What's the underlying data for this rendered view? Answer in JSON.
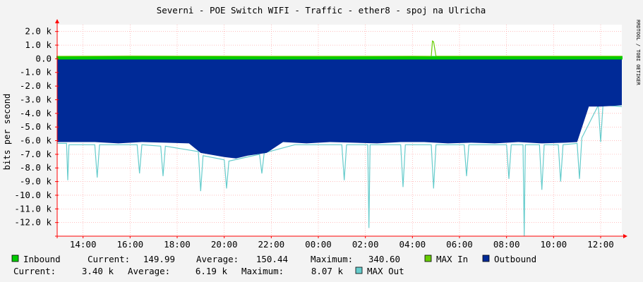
{
  "chart_data": {
    "type": "area",
    "title": "Severni - POE Switch WIFI - Traffic - ether8 - spoj na Ulricha",
    "ylabel": "bits per second",
    "watermark": "RRDTOOL / TOBI OETIKER",
    "ylim": [
      -13000,
      2500
    ],
    "y_ticks": [
      2000,
      1000,
      0,
      -1000,
      -2000,
      -3000,
      -4000,
      -5000,
      -6000,
      -7000,
      -8000,
      -9000,
      -10000,
      -11000,
      -12000
    ],
    "y_tick_labels": [
      "2.0 k",
      "1.0 k",
      "0.0",
      "-1.0 k",
      "-2.0 k",
      "-3.0 k",
      "-4.0 k",
      "-5.0 k",
      "-6.0 k",
      "-7.0 k",
      "-8.0 k",
      "-9.0 k",
      "-10.0 k",
      "-11.0 k",
      "-12.0 k"
    ],
    "x_range_hours": [
      12.9,
      36.9
    ],
    "x_ticks": [
      14,
      16,
      18,
      20,
      22,
      24,
      26,
      28,
      30,
      32,
      34,
      36
    ],
    "x_tick_labels": [
      "14:00",
      "16:00",
      "18:00",
      "20:00",
      "22:00",
      "00:00",
      "02:00",
      "04:00",
      "06:00",
      "08:00",
      "10:00",
      "12:00"
    ],
    "colors": {
      "inbound": "#00cc00",
      "max_in": "#66cc00",
      "outbound": "#002a97",
      "max_out": "#66cccc",
      "grid": "#ff9999",
      "plot_bg": "#ffffff",
      "axis": "#ff0000"
    },
    "series": [
      {
        "name": "Inbound",
        "x": [
          12.9,
          16,
          20,
          24,
          28,
          28.8,
          29,
          32,
          36,
          36.9
        ],
        "values": [
          150,
          150,
          150,
          150,
          150,
          150,
          150,
          150,
          150,
          150
        ]
      },
      {
        "name": "MAX In",
        "x": [
          12.9,
          16,
          20,
          24,
          28,
          28.8,
          28.85,
          28.9,
          29,
          32,
          36,
          36.9
        ],
        "values": [
          180,
          200,
          190,
          180,
          190,
          180,
          1300,
          1250,
          190,
          190,
          190,
          190
        ]
      },
      {
        "name": "Outbound",
        "x": [
          12.9,
          13.5,
          14.5,
          15.5,
          16.5,
          17.5,
          18.5,
          19,
          20,
          20.5,
          21,
          21.8,
          22.5,
          23.5,
          24.5,
          25.5,
          26.5,
          27.5,
          28.5,
          29.5,
          30.5,
          31.5,
          32.5,
          33.5,
          34.5,
          35,
          35.5,
          36,
          36.5,
          36.9
        ],
        "values": [
          -6100,
          -6100,
          -6100,
          -6200,
          -6100,
          -6150,
          -6200,
          -6900,
          -7200,
          -7300,
          -7100,
          -6900,
          -6100,
          -6200,
          -6100,
          -6150,
          -6200,
          -6100,
          -6100,
          -6200,
          -6150,
          -6200,
          -6100,
          -6200,
          -6150,
          -6100,
          -3500,
          -3500,
          -3450,
          -3400
        ]
      },
      {
        "name": "MAX Out",
        "x": [
          12.9,
          13.3,
          13.35,
          13.4,
          14.5,
          14.6,
          14.7,
          16.3,
          16.4,
          16.5,
          17.3,
          17.4,
          17.5,
          18.9,
          19.0,
          19.1,
          20.0,
          20.1,
          20.2,
          21.5,
          21.6,
          21.7,
          23.0,
          24.5,
          25.0,
          25.1,
          25.2,
          26.1,
          26.15,
          26.2,
          27.5,
          27.6,
          27.7,
          28.8,
          28.9,
          29.0,
          30.2,
          30.3,
          30.4,
          32.0,
          32.1,
          32.2,
          32.7,
          32.75,
          32.8,
          33.4,
          33.5,
          33.6,
          34.2,
          34.3,
          34.4,
          35.0,
          35.1,
          35.2,
          35.9,
          36.0,
          36.1,
          36.9
        ],
        "values": [
          -6200,
          -6200,
          -8900,
          -6300,
          -6300,
          -8700,
          -6300,
          -6300,
          -8400,
          -6300,
          -6400,
          -8600,
          -6400,
          -6800,
          -9700,
          -7100,
          -7400,
          -9500,
          -7500,
          -7000,
          -8400,
          -6900,
          -6300,
          -6300,
          -6300,
          -8900,
          -6300,
          -6300,
          -12400,
          -6300,
          -6300,
          -9400,
          -6300,
          -6300,
          -9500,
          -6300,
          -6300,
          -8600,
          -6300,
          -6300,
          -8800,
          -6300,
          -6300,
          -13000,
          -6300,
          -6300,
          -9600,
          -6300,
          -6300,
          -9000,
          -6300,
          -6200,
          -8800,
          -5800,
          -3400,
          -6100,
          -3400,
          -3500
        ]
      }
    ],
    "legend": {
      "row1": {
        "inbound_label": "Inbound",
        "current_label": "Current:",
        "current_value": "149.99",
        "average_label": "Average:",
        "average_value": "150.44",
        "maximum_label": "Maximum:",
        "maximum_value": "340.60",
        "max_in_label": "MAX In",
        "outbound_label": "Outbound"
      },
      "row2": {
        "current_label": "Current:",
        "current_value": "3.40 k",
        "average_label": "Average:",
        "average_value": "6.19 k",
        "maximum_label": "Maximum:",
        "maximum_value": "8.07 k",
        "max_out_label": "MAX Out"
      }
    }
  }
}
